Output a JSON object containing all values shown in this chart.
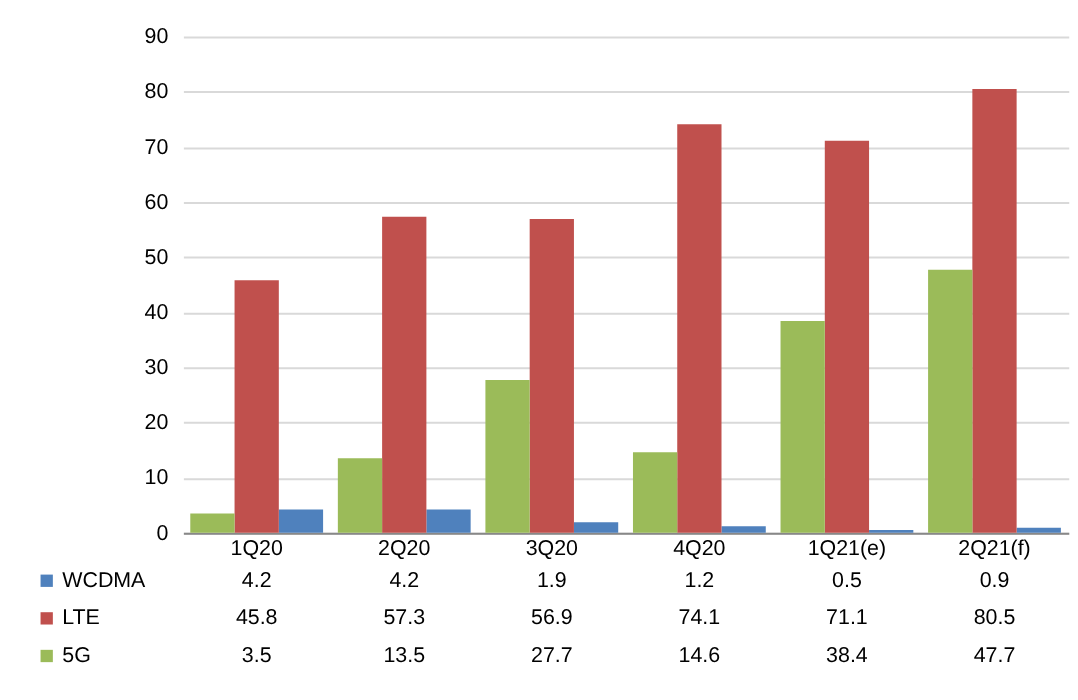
{
  "chart_data": {
    "type": "bar",
    "categories": [
      "1Q20",
      "2Q20",
      "3Q20",
      "4Q20",
      "1Q21(e)",
      "2Q21(f)"
    ],
    "series": [
      {
        "name": "WCDMA",
        "color": "#4f81bd",
        "values": [
          4.2,
          4.2,
          1.9,
          1.2,
          0.5,
          0.9
        ]
      },
      {
        "name": "LTE",
        "color": "#c0504d",
        "values": [
          45.8,
          57.3,
          56.9,
          74.1,
          71.1,
          80.5
        ]
      },
      {
        "name": "5G",
        "color": "#9bbb59",
        "values": [
          3.5,
          13.5,
          27.7,
          14.6,
          38.4,
          47.7
        ]
      }
    ],
    "ylim": [
      0,
      90
    ],
    "yticks": [
      0,
      10,
      20,
      30,
      40,
      50,
      60,
      70,
      80,
      90
    ],
    "grid": "y",
    "data_labels": true,
    "legend": "bottom left"
  }
}
